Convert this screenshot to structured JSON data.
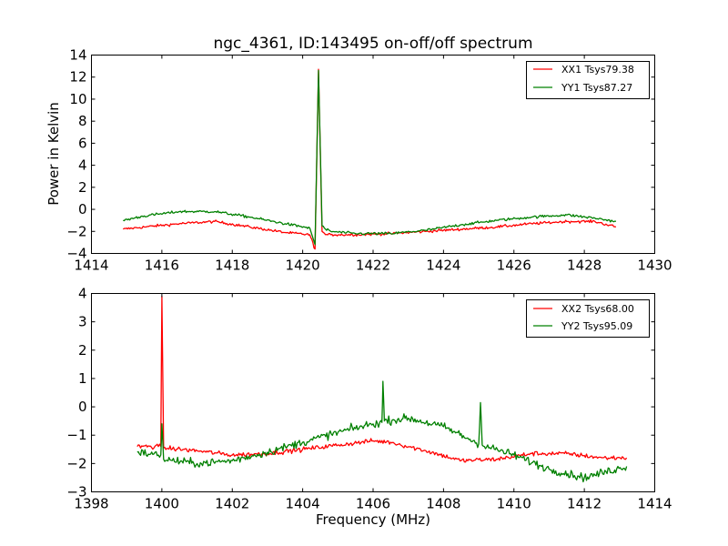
{
  "chart_data": [
    {
      "type": "line",
      "title": "ngc_4361, ID:143495 on-off/off spectrum",
      "xlabel": "",
      "ylabel": "Power in Kelvin",
      "xlim": [
        1414,
        1430
      ],
      "ylim": [
        -4,
        14
      ],
      "xticks": [
        "1414",
        "1416",
        "1418",
        "1420",
        "1422",
        "1424",
        "1426",
        "1428",
        "1430"
      ],
      "yticks": [
        "−4",
        "−2",
        "0",
        "2",
        "4",
        "6",
        "8",
        "10",
        "12",
        "14"
      ],
      "legend_position": "top-right",
      "grid": false,
      "series": [
        {
          "name": "XX1 Tsys79.38",
          "color": "#ff0000",
          "x": [
            1414.9,
            1415.5,
            1416.5,
            1417.5,
            1418.5,
            1419.5,
            1420.2,
            1420.35,
            1420.45,
            1420.55,
            1420.65,
            1420.8,
            1421.5,
            1422.5,
            1423.5,
            1424.5,
            1425.5,
            1426.5,
            1427.5,
            1428.3,
            1428.9
          ],
          "y": [
            -1.8,
            -1.6,
            -1.3,
            -1.1,
            -1.6,
            -2.1,
            -2.3,
            -3.6,
            12.7,
            -2.0,
            -2.3,
            -2.3,
            -2.3,
            -2.2,
            -2.0,
            -1.8,
            -1.6,
            -1.3,
            -1.1,
            -1.1,
            -1.6
          ],
          "noise": 0.12
        },
        {
          "name": "YY1 Tsys87.27",
          "color": "#008000",
          "x": [
            1414.9,
            1415.5,
            1416.5,
            1417.5,
            1418.5,
            1419.5,
            1420.2,
            1420.35,
            1420.45,
            1420.55,
            1420.65,
            1420.8,
            1421.5,
            1422.5,
            1423.5,
            1424.5,
            1425.5,
            1426.5,
            1427.5,
            1428.3,
            1428.9
          ],
          "y": [
            -1.0,
            -0.6,
            -0.2,
            -0.2,
            -0.7,
            -1.3,
            -1.7,
            -3.2,
            12.6,
            -1.5,
            -1.8,
            -2.0,
            -2.2,
            -2.2,
            -1.9,
            -1.4,
            -1.0,
            -0.7,
            -0.5,
            -0.8,
            -1.1
          ],
          "noise": 0.12
        }
      ]
    },
    {
      "type": "line",
      "title": "",
      "xlabel": "Frequency (MHz)",
      "ylabel": "",
      "xlim": [
        1398,
        1414
      ],
      "ylim": [
        -3,
        4
      ],
      "xticks": [
        "1398",
        "1400",
        "1402",
        "1404",
        "1406",
        "1408",
        "1410",
        "1412",
        "1414"
      ],
      "yticks": [
        "−3",
        "−2",
        "−1",
        "0",
        "1",
        "2",
        "3",
        "4"
      ],
      "legend_position": "top-right",
      "grid": false,
      "series": [
        {
          "name": "XX2 Tsys68.00",
          "color": "#ff0000",
          "x": [
            1399.3,
            1399.9,
            1399.97,
            1400.0,
            1400.05,
            1401.0,
            1402.0,
            1403.0,
            1404.0,
            1405.0,
            1406.0,
            1406.5,
            1407.5,
            1408.5,
            1409.5,
            1410.5,
            1411.5,
            1412.5,
            1413.2
          ],
          "y": [
            -1.4,
            -1.4,
            -1.4,
            3.9,
            -1.45,
            -1.55,
            -1.7,
            -1.65,
            -1.5,
            -1.35,
            -1.2,
            -1.25,
            -1.55,
            -1.9,
            -1.85,
            -1.65,
            -1.65,
            -1.8,
            -1.8
          ],
          "noise": 0.08
        },
        {
          "name": "YY2 Tsys95.09",
          "color": "#008000",
          "x": [
            1399.3,
            1399.9,
            1399.97,
            1400.0,
            1400.05,
            1401.0,
            1402.0,
            1403.0,
            1404.0,
            1405.0,
            1406.0,
            1406.25,
            1406.28,
            1406.32,
            1407.0,
            1408.0,
            1409.0,
            1409.05,
            1409.1,
            1410.0,
            1411.0,
            1412.0,
            1413.2
          ],
          "y": [
            -1.6,
            -1.7,
            -1.7,
            -0.6,
            -1.85,
            -2.0,
            -1.9,
            -1.6,
            -1.25,
            -0.9,
            -0.6,
            -0.55,
            0.9,
            -0.5,
            -0.4,
            -0.7,
            -1.3,
            0.15,
            -1.35,
            -1.7,
            -2.2,
            -2.5,
            -2.1
          ],
          "noise": 0.14
        }
      ]
    }
  ]
}
